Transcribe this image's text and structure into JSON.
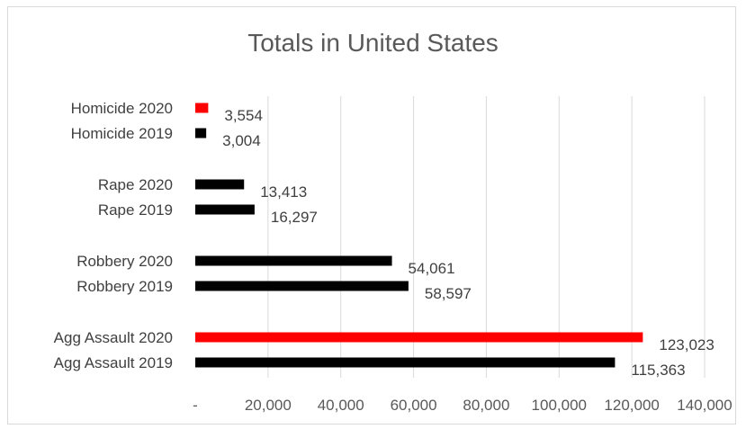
{
  "chart_data": {
    "type": "bar",
    "orientation": "horizontal",
    "title": "Totals in United States",
    "categories": [
      "Homicide 2020",
      "Homicide 2019",
      "Rape 2020",
      "Rape 2019",
      "Robbery 2020",
      "Robbery 2019",
      "Agg Assault 2020",
      "Agg Assault 2019"
    ],
    "values": [
      3554,
      3004,
      13413,
      16297,
      54061,
      58597,
      123023,
      115363
    ],
    "data_labels": [
      "3,554",
      "3,004",
      "13,413",
      "16,297",
      "54,061",
      "58,597",
      "123,023",
      "115,363"
    ],
    "bar_colors": [
      "#ff0000",
      "#000000",
      "#000000",
      "#000000",
      "#000000",
      "#000000",
      "#ff0000",
      "#000000"
    ],
    "xlim": [
      0,
      140000
    ],
    "x_tick_labels": [
      "-",
      "20,000",
      "40,000",
      "60,000",
      "80,000",
      "100,000",
      "120,000",
      "140,000"
    ],
    "x_ticks": [
      0,
      20000,
      40000,
      60000,
      80000,
      100000,
      120000,
      140000
    ],
    "grid": "vertical",
    "gridline_color": "#d9d9d9",
    "legend": "none"
  }
}
